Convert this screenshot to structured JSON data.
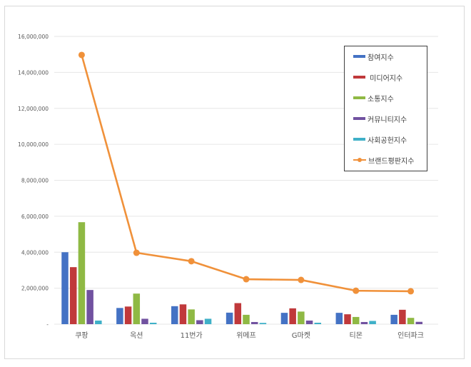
{
  "chart_data": {
    "type": "bar+line",
    "title": "",
    "xlabel": "",
    "ylabel": "",
    "ylim": [
      0,
      16000000
    ],
    "grid": true,
    "legend_position": "upper-right-inside",
    "y_ticks": [
      "-",
      "2,000,000",
      "4,000,000",
      "6,000,000",
      "8,000,000",
      "10,000,000",
      "12,000,000",
      "14,000,000",
      "16,000,000"
    ],
    "y_tick_values": [
      0,
      2000000,
      4000000,
      6000000,
      8000000,
      10000000,
      12000000,
      14000000,
      16000000
    ],
    "categories": [
      "쿠팡",
      "옥션",
      "11번가",
      "위메프",
      "G마켓",
      "티몬",
      "인터파크"
    ],
    "series": [
      {
        "name": "참여지수",
        "type": "bar",
        "color": "#4472c4",
        "values": [
          4000000,
          900000,
          1000000,
          640000,
          630000,
          630000,
          520000
        ]
      },
      {
        "name": "미디어지수",
        "type": "bar",
        "color": "#c0393b",
        "values": [
          3170000,
          980000,
          1100000,
          1170000,
          880000,
          550000,
          800000
        ]
      },
      {
        "name": "소통지수",
        "type": "bar",
        "color": "#8fb944",
        "values": [
          5670000,
          1700000,
          820000,
          520000,
          700000,
          400000,
          350000
        ]
      },
      {
        "name": "커뮤니티지수",
        "type": "bar",
        "color": "#7152a0",
        "values": [
          1900000,
          300000,
          220000,
          120000,
          200000,
          120000,
          130000
        ]
      },
      {
        "name": "사회공헌지수",
        "type": "bar",
        "color": "#3fb0c8",
        "values": [
          200000,
          80000,
          300000,
          70000,
          80000,
          180000,
          0
        ]
      },
      {
        "name": "브랜드평판지수",
        "type": "line",
        "color": "#f0913a",
        "values": [
          14970000,
          3970000,
          3500000,
          2500000,
          2460000,
          1860000,
          1830000
        ]
      }
    ]
  }
}
